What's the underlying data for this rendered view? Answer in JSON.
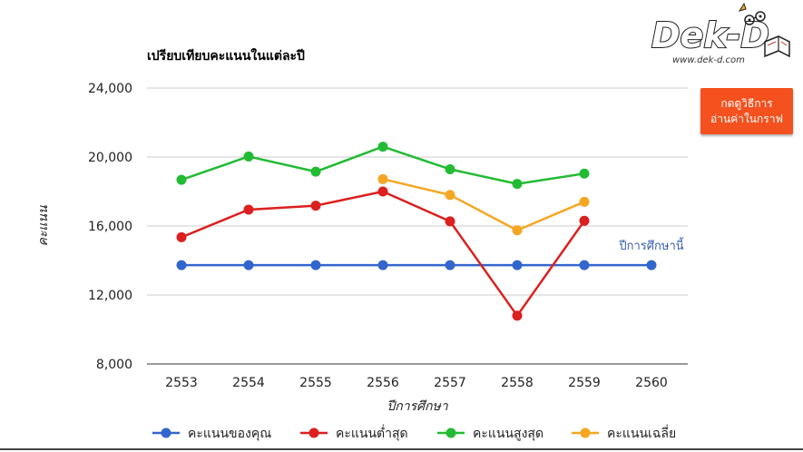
{
  "logo": {
    "text": "Dek-D",
    "url": "www.dek-d.com"
  },
  "help_button": {
    "line1": "กดดูวิธีการ",
    "line2": "อ่านค่าในกราฟ"
  },
  "colors": {
    "blue": "#3366cc",
    "red": "#dc1f1f",
    "green": "#22bb33",
    "orange": "#f5a623",
    "grid": "#cccccc",
    "button": "#f4511e"
  },
  "chart_data": {
    "type": "line",
    "title": "เปรียบเทียบคะแนนในแต่ละปี",
    "xlabel": "ปีการศึกษา",
    "ylabel": "คะแนน",
    "categories": [
      "2553",
      "2554",
      "2555",
      "2556",
      "2557",
      "2558",
      "2559",
      "2560"
    ],
    "ylim": [
      8000,
      24000
    ],
    "yticks": [
      8000,
      12000,
      16000,
      20000,
      24000
    ],
    "ytick_labels": [
      "8,000",
      "12,000",
      "16,000",
      "20,000",
      "24,000"
    ],
    "grid": true,
    "legend_position": "bottom",
    "annotation": {
      "text": "ปีการศึกษานี้",
      "category": "2560"
    },
    "series": [
      {
        "name": "คะแนนของคุณ",
        "color": "#3366cc",
        "values": [
          13730,
          13730,
          13730,
          13730,
          13730,
          13730,
          13730,
          13730
        ]
      },
      {
        "name": "คะแนนต่ำสุด",
        "color": "#dc1f1f",
        "values": [
          15350,
          16950,
          17180,
          18000,
          16270,
          10800,
          16300,
          null
        ]
      },
      {
        "name": "คะแนนสูงสุด",
        "color": "#22bb33",
        "values": [
          18680,
          20030,
          19150,
          20600,
          19290,
          18440,
          19040,
          null
        ]
      },
      {
        "name": "คะแนนเฉลี่ย",
        "color": "#f5a623",
        "values": [
          null,
          null,
          null,
          18720,
          17800,
          15750,
          17400,
          null
        ]
      }
    ]
  }
}
